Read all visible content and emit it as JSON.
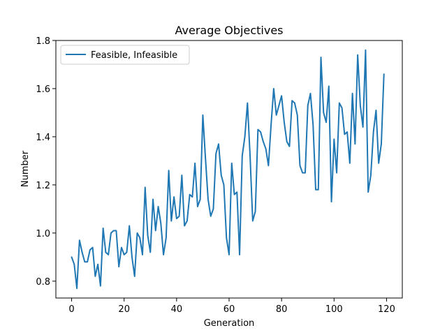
{
  "chart_data": {
    "type": "line",
    "title": "Average Objectives",
    "xlabel": "Generation",
    "ylabel": "Number",
    "xlim": [
      -6,
      126
    ],
    "ylim": [
      0.73,
      1.8
    ],
    "xticks": [
      0,
      20,
      40,
      60,
      80,
      100,
      120
    ],
    "yticks": [
      0.8,
      1.0,
      1.2,
      1.4,
      1.6,
      1.8
    ],
    "ytick_labels": [
      "0.8",
      "1.0",
      "1.2",
      "1.4",
      "1.6",
      "1.8"
    ],
    "grid": false,
    "legend_position": "upper-left",
    "series": [
      {
        "name": "Feasible, Infeasible",
        "color": "#1f77b4",
        "x": [
          0,
          1,
          2,
          3,
          4,
          5,
          6,
          7,
          8,
          9,
          10,
          11,
          12,
          13,
          14,
          15,
          16,
          17,
          18,
          19,
          20,
          21,
          22,
          23,
          24,
          25,
          26,
          27,
          28,
          29,
          30,
          31,
          32,
          33,
          34,
          35,
          36,
          37,
          38,
          39,
          40,
          41,
          42,
          43,
          44,
          45,
          46,
          47,
          48,
          49,
          50,
          51,
          52,
          53,
          54,
          55,
          56,
          57,
          58,
          59,
          60,
          61,
          62,
          63,
          64,
          65,
          66,
          67,
          68,
          69,
          70,
          71,
          72,
          73,
          74,
          75,
          76,
          77,
          78,
          79,
          80,
          81,
          82,
          83,
          84,
          85,
          86,
          87,
          88,
          89,
          90,
          91,
          92,
          93,
          94,
          95,
          96,
          97,
          98,
          99,
          100,
          101,
          102,
          103,
          104,
          105,
          106,
          107,
          108,
          109,
          110,
          111,
          112,
          113,
          114,
          115,
          116,
          117,
          118,
          119
        ],
        "values": [
          0.9,
          0.87,
          0.77,
          0.97,
          0.92,
          0.88,
          0.88,
          0.93,
          0.94,
          0.82,
          0.87,
          0.78,
          1.02,
          0.92,
          0.91,
          1.0,
          1.01,
          1.01,
          0.86,
          0.94,
          0.91,
          0.92,
          1.03,
          0.9,
          0.82,
          1.0,
          0.98,
          0.91,
          1.19,
          0.99,
          0.92,
          1.14,
          1.01,
          1.11,
          1.04,
          0.91,
          0.98,
          1.26,
          1.05,
          1.15,
          1.06,
          1.07,
          1.24,
          1.03,
          1.05,
          1.16,
          1.15,
          1.29,
          1.11,
          1.14,
          1.49,
          1.31,
          1.14,
          1.07,
          1.1,
          1.33,
          1.37,
          1.24,
          1.2,
          0.98,
          0.91,
          1.29,
          1.16,
          1.17,
          0.91,
          1.32,
          1.4,
          1.54,
          1.32,
          1.05,
          1.09,
          1.43,
          1.42,
          1.38,
          1.35,
          1.28,
          1.45,
          1.6,
          1.49,
          1.53,
          1.57,
          1.46,
          1.38,
          1.36,
          1.55,
          1.54,
          1.49,
          1.28,
          1.25,
          1.25,
          1.53,
          1.58,
          1.45,
          1.18,
          1.18,
          1.73,
          1.5,
          1.46,
          1.61,
          1.13,
          1.39,
          1.25,
          1.54,
          1.52,
          1.41,
          1.42,
          1.29,
          1.58,
          1.37,
          1.74,
          1.53,
          1.44,
          1.76,
          1.17,
          1.24,
          1.42,
          1.51,
          1.29,
          1.37,
          1.66
        ]
      }
    ]
  }
}
